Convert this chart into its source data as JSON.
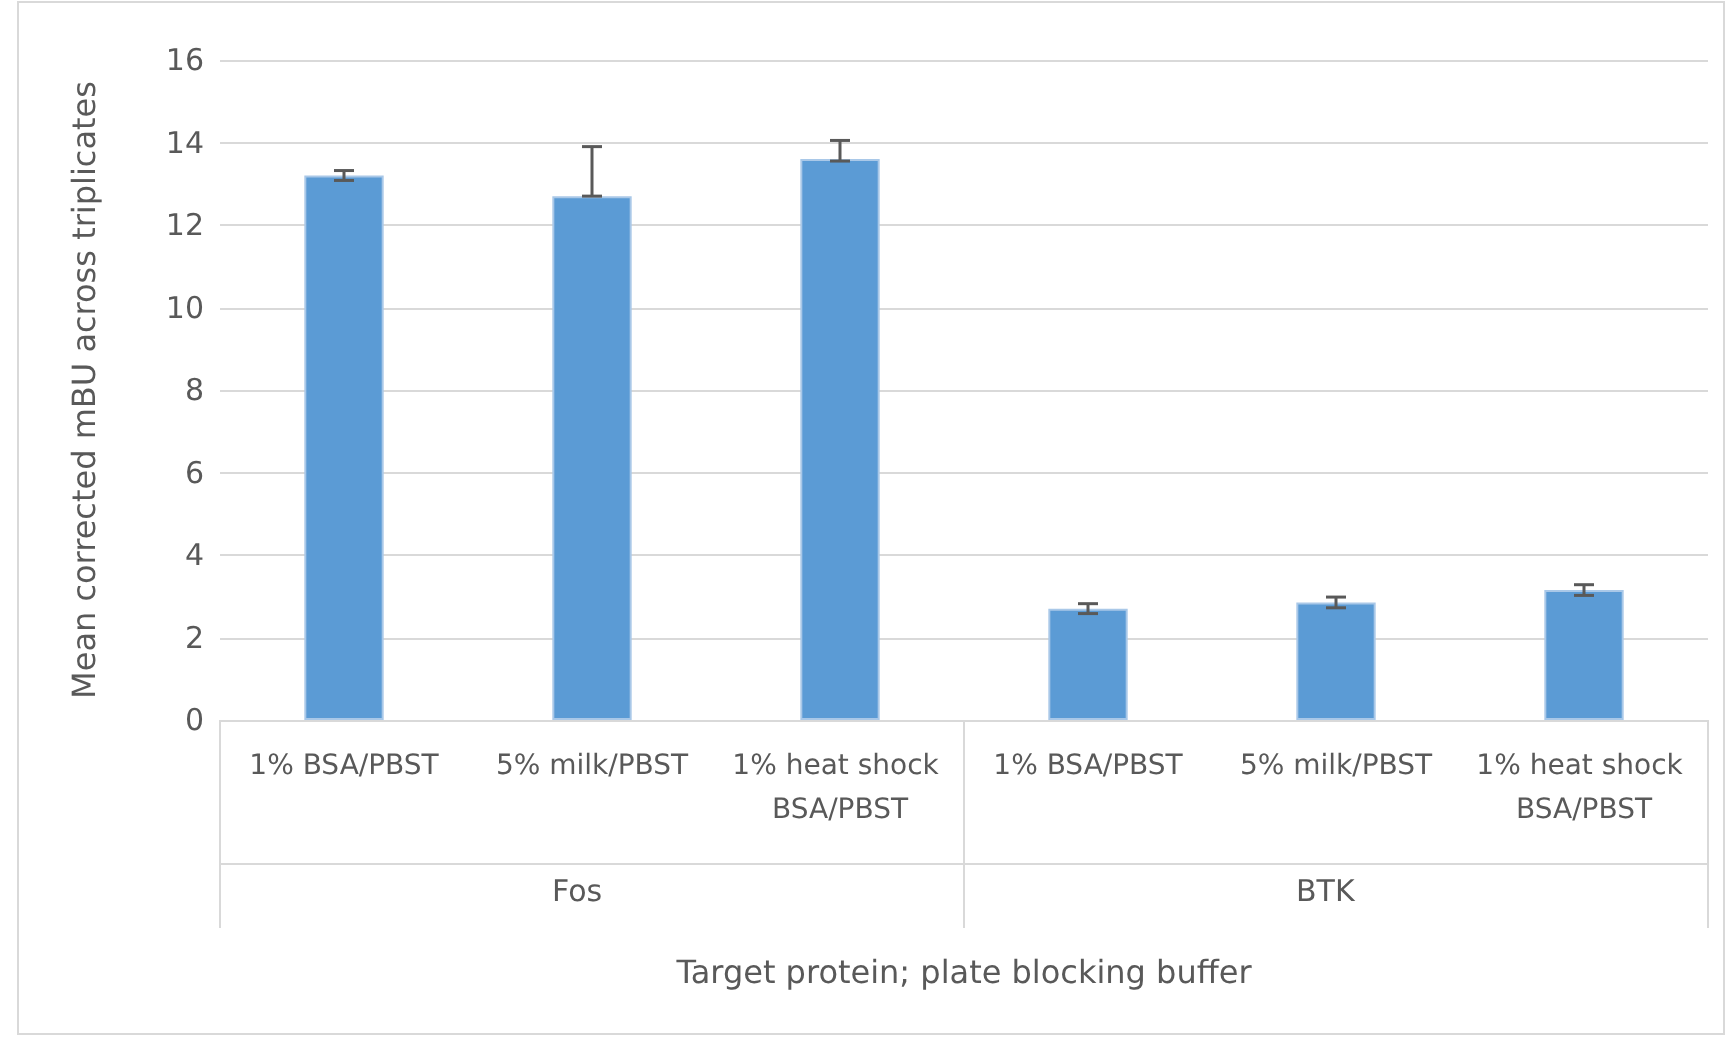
{
  "chart_data": {
    "type": "bar",
    "categories": [
      "1% BSA/PBST",
      "5% milk/PBST",
      "1% heat shock BSA/PBST",
      "1% BSA/PBST",
      "5% milk/PBST",
      "1% heat shock BSA/PBST"
    ],
    "values": [
      13.2,
      12.7,
      13.6,
      2.7,
      2.85,
      3.15
    ],
    "errors": [
      0.12,
      [
        12.7,
        13.9
      ],
      [
        13.55,
        14.05
      ],
      0.12,
      0.13,
      0.13
    ],
    "color": "#5b9bd5",
    "ylim": [
      0,
      16
    ],
    "yticks": [
      0,
      2,
      4,
      6,
      8,
      10,
      12,
      14,
      16
    ],
    "grid": "y",
    "ylabel": "Mean corrected mBU across triplicates",
    "xlabel": "Target protein; plate blocking buffer",
    "annotations": [
      "Fos",
      "BTK"
    ]
  }
}
